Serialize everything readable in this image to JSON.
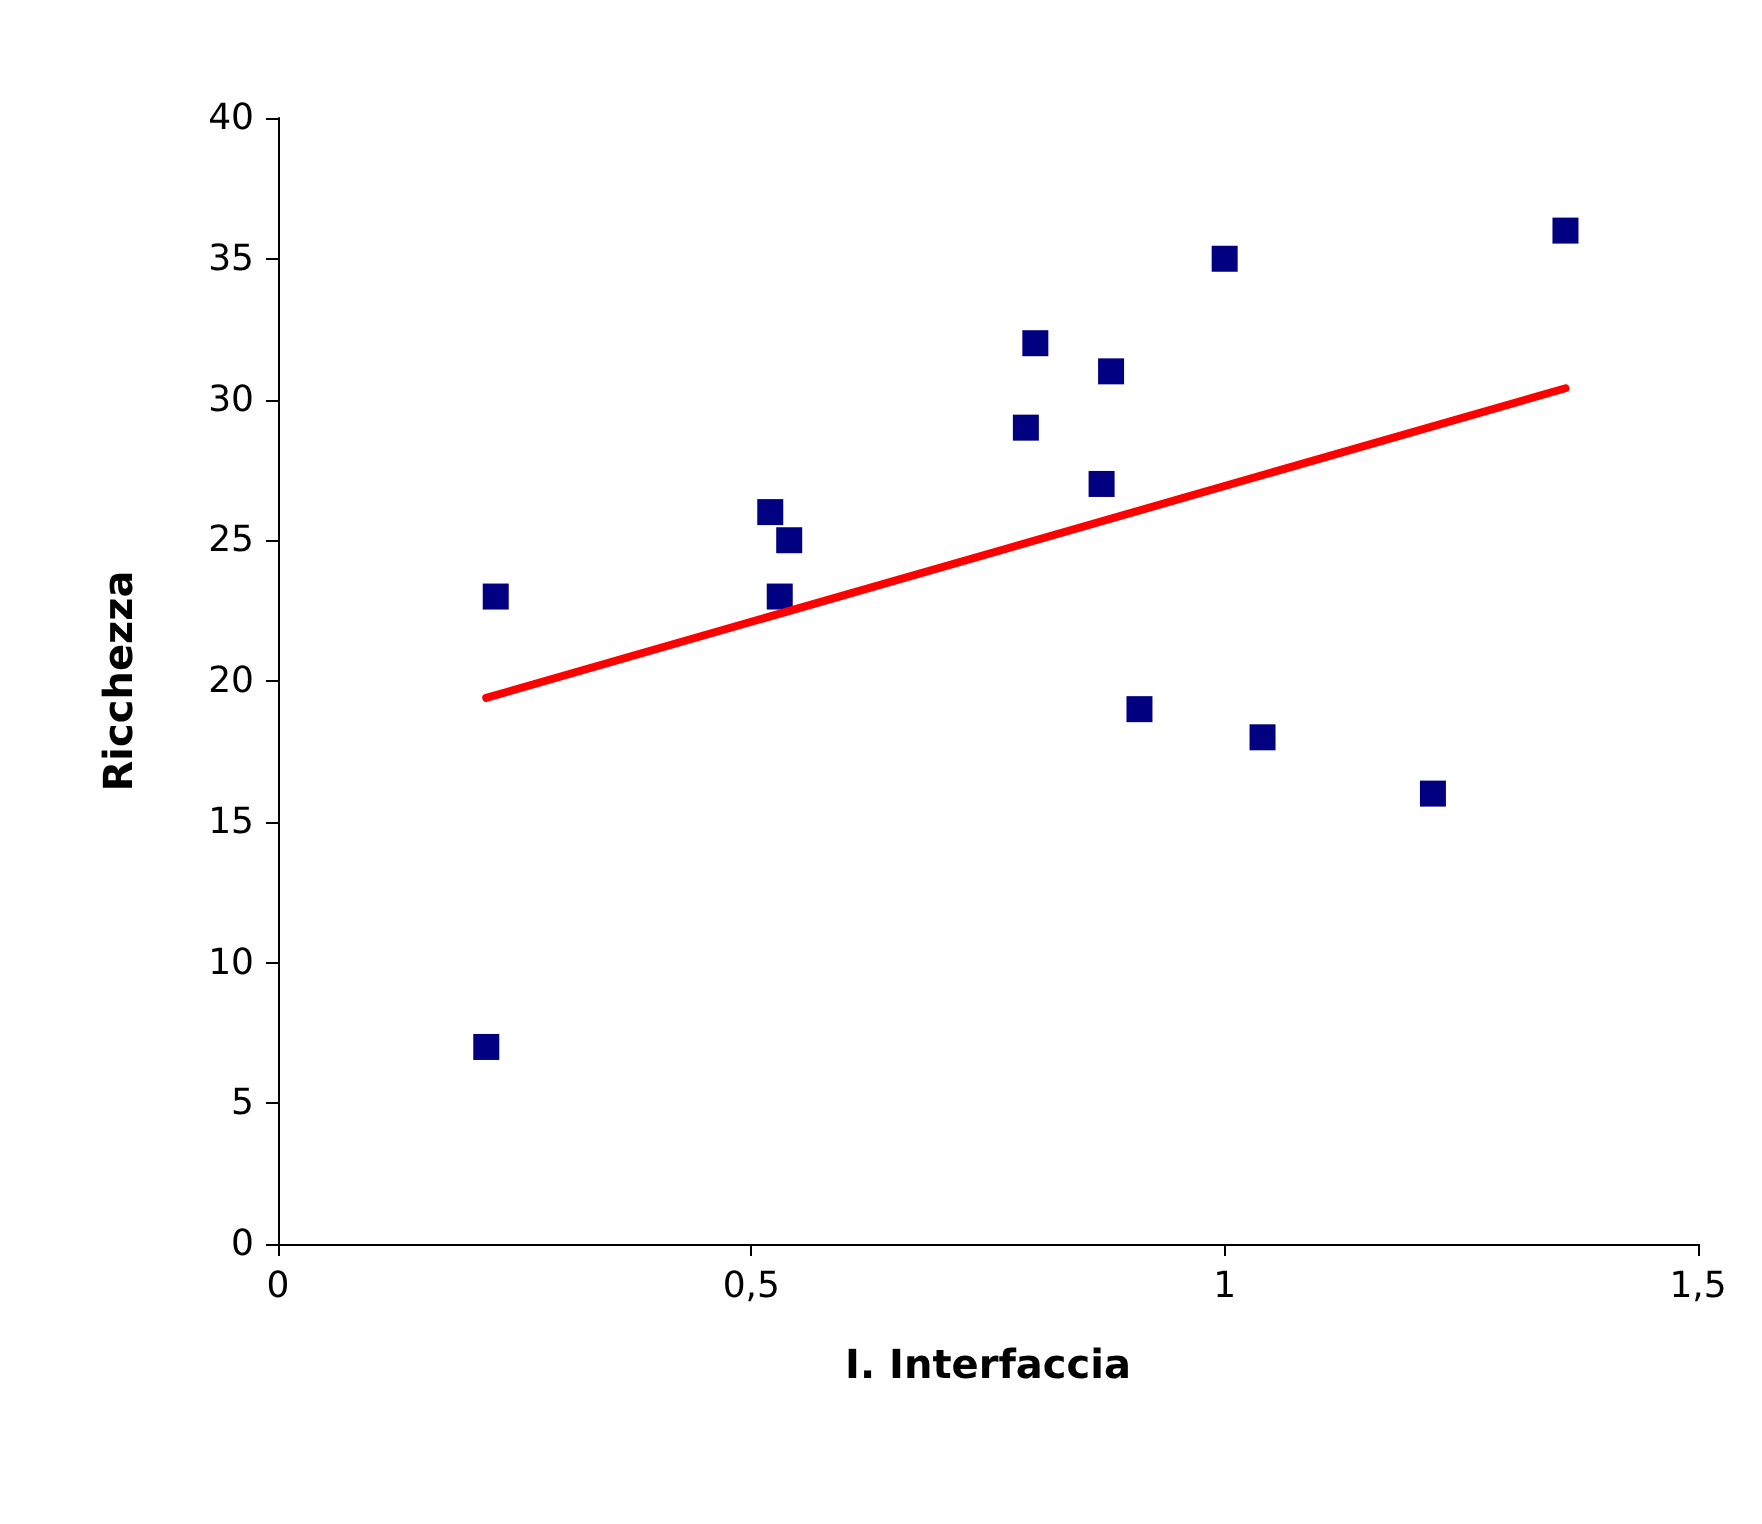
{
  "chart_data": {
    "type": "scatter",
    "xlabel": "I. Interfaccia",
    "ylabel": "Ricchezza",
    "marker": "square",
    "grid": false,
    "xlim": [
      0,
      1.5
    ],
    "xticks": [
      0,
      {
        "value": 0.5,
        "label": "0,5"
      },
      1,
      {
        "value": 1.5,
        "label": "1,5"
      }
    ],
    "ylim": [
      0,
      40
    ],
    "yticks": [
      0,
      5,
      10,
      15,
      20,
      25,
      30,
      35,
      40
    ],
    "series": [
      {
        "color": "#000080",
        "x": [
          0.22,
          0.23,
          0.52,
          0.53,
          0.54,
          0.79,
          0.8,
          0.87,
          0.88,
          0.91,
          1.0,
          1.04,
          1.22,
          1.36
        ],
        "values": [
          7,
          23,
          26,
          23,
          25,
          29,
          32,
          27,
          31,
          19,
          35,
          18,
          16,
          36
        ]
      },
      {
        "type": "line",
        "color": "#ff0000",
        "x": [
          0.22,
          1.36
        ],
        "values": [
          19.4,
          30.4
        ],
        "marker": "none",
        "line_style": "solid"
      }
    ]
  }
}
